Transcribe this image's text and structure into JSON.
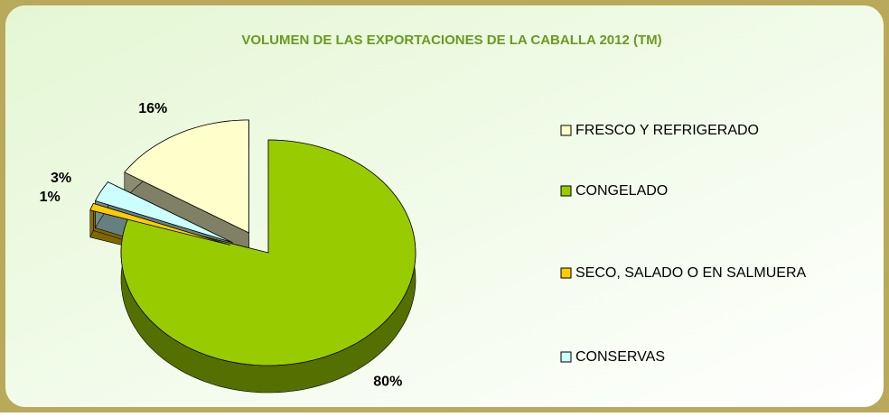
{
  "chart_data": {
    "type": "pie",
    "title": "VOLUMEN DE LAS EXPORTACIONES DE LA CABALLA 2012 (TM)",
    "categories": [
      "FRESCO Y REFRIGERADO",
      "CONGELADO",
      "SECO, SALADO O EN SALMUERA",
      "CONSERVAS"
    ],
    "values": [
      16,
      80,
      1,
      3
    ],
    "value_labels": [
      "16%",
      "80%",
      "1%",
      "3%"
    ],
    "colors": [
      "#ffffcc",
      "#99cc00",
      "#ffcc00",
      "#ccffff"
    ],
    "legend": "right"
  }
}
